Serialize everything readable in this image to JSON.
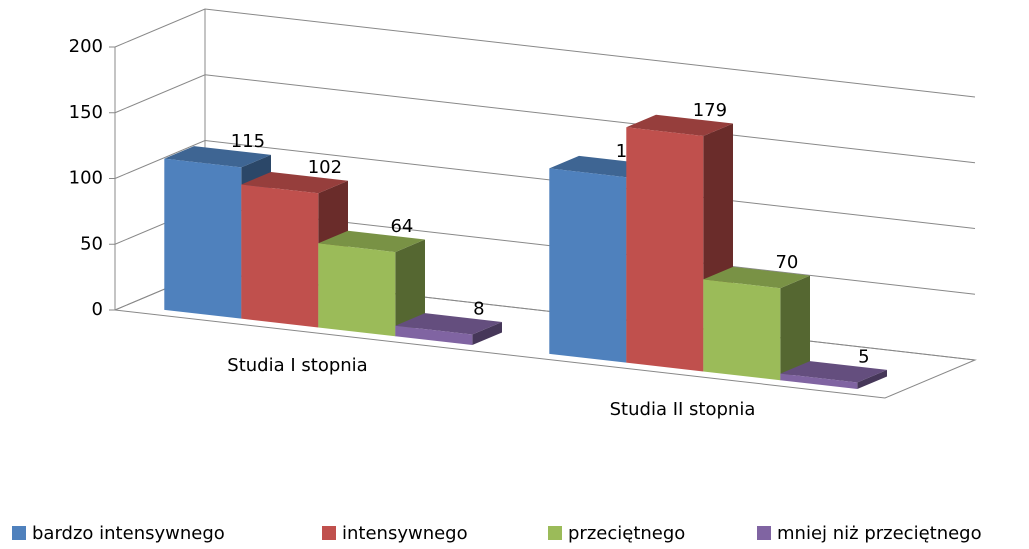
{
  "chart_data": {
    "type": "bar3d",
    "categories": [
      "Studia I stopnia",
      "Studia II stopnia"
    ],
    "series": [
      {
        "name": "bardzo intensywnego",
        "color": "#4f81bd",
        "values": [
          115,
          141
        ]
      },
      {
        "name": "intensywnego",
        "color": "#c0504d",
        "values": [
          102,
          179
        ]
      },
      {
        "name": "przeciętnego",
        "color": "#9bbb59",
        "values": [
          64,
          70
        ]
      },
      {
        "name": "mniej niż przeciętnego",
        "color": "#8064a2",
        "values": [
          8,
          5
        ]
      }
    ],
    "ylim": [
      0,
      200
    ],
    "yticks": [
      0,
      50,
      100,
      150,
      200
    ],
    "grid": true,
    "legend": "bottom"
  }
}
